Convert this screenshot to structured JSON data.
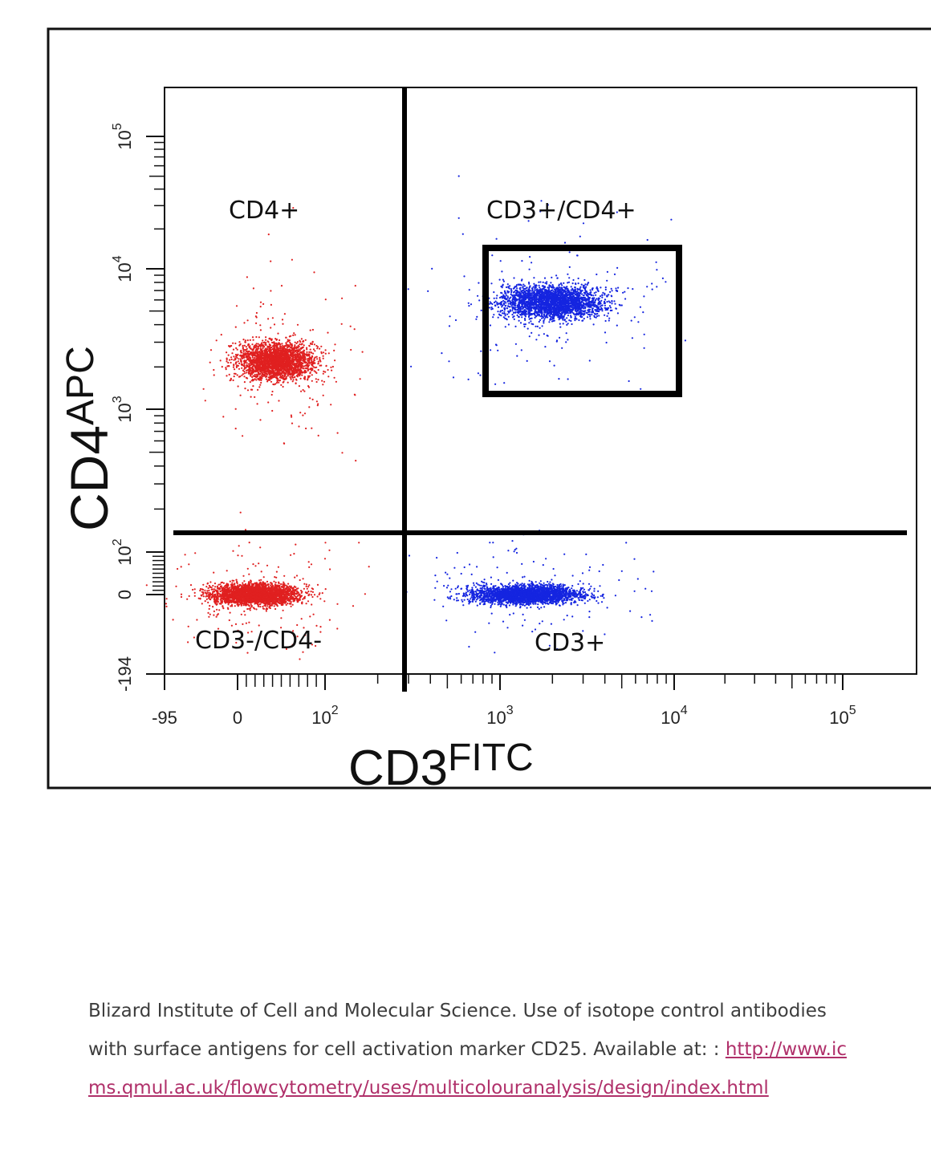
{
  "chart_data": {
    "type": "scatter",
    "xlabel": "CD3",
    "xlabel_sup": "FITC",
    "ylabel": "CD4",
    "ylabel_sup": "APC",
    "x_scale": "biexponential",
    "y_scale": "biexponential",
    "xlim": [
      -95,
      100000
    ],
    "ylim": [
      -194,
      100000
    ],
    "x_ticks": [
      {
        "value": -95,
        "label": "-95"
      },
      {
        "value": 0,
        "label": "0"
      },
      {
        "value": 100,
        "base": "10",
        "exp": "2"
      },
      {
        "value": 1000,
        "base": "10",
        "exp": "3"
      },
      {
        "value": 10000,
        "base": "10",
        "exp": "4"
      },
      {
        "value": 100000,
        "base": "10",
        "exp": "5"
      }
    ],
    "y_ticks": [
      {
        "value": -194,
        "label": "-194"
      },
      {
        "value": 0,
        "label": "0"
      },
      {
        "value": 100,
        "base": "10",
        "exp": "2"
      },
      {
        "value": 1000,
        "base": "10",
        "exp": "3"
      },
      {
        "value": 10000,
        "base": "10",
        "exp": "4"
      },
      {
        "value": 100000,
        "base": "10",
        "exp": "5"
      }
    ],
    "quadrant_gates": {
      "x": 300,
      "y": 150
    },
    "quadrant_labels": {
      "upper_left": "CD4+",
      "upper_right": "CD3+/CD4+",
      "lower_left": "CD3-/CD4-",
      "lower_right": "CD3+"
    },
    "gate_box": {
      "x_range": [
        800,
        6000
      ],
      "y_range": [
        1300,
        11000
      ]
    },
    "populations": [
      {
        "color": "#e02020",
        "cx": 45,
        "cy": 2200,
        "points": 2600
      },
      {
        "color": "#e02020",
        "cx": 20,
        "cy": 0,
        "points": 3000
      },
      {
        "color": "#1525e0",
        "cx": 2000,
        "cy": 5800,
        "points": 2600
      },
      {
        "color": "#1525e0",
        "cx": 1400,
        "cy": 0,
        "points": 2600
      }
    ],
    "grid": false,
    "legend": "none"
  },
  "colors": {
    "cd4_negative_cells": "#e02020",
    "cd3_positive_cells": "#1525e0",
    "link": "#b0306a"
  },
  "caption": {
    "text": "Blizard Institute of Cell and Molecular Science. Use of isotope control antibodies with surface antigens for cell activation marker CD25. Available at: : ",
    "link": "http://www.icms.qmul.ac.uk/flowcytometry/uses/multicolouranalysis/design/index.html"
  }
}
